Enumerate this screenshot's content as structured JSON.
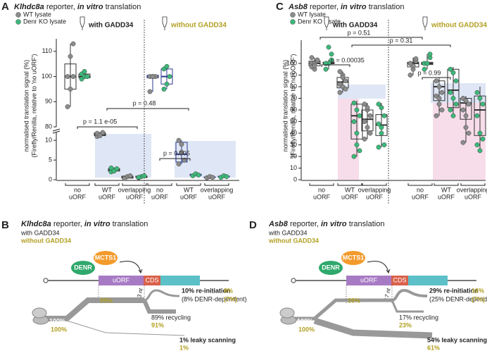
{
  "chart_data": [
    {
      "type": "box",
      "panel": "A",
      "title": [
        "Klhdc8a",
        " reporter, ",
        "in vitro",
        " translation"
      ],
      "series": [
        {
          "name": "WT lysate",
          "color": "#8c8c8c"
        },
        {
          "name": "Denr KO lysate",
          "color": "#3cb87a"
        }
      ],
      "ylabel": [
        "normalised translation signal (%)",
        "(Firefly/Renilla, relative to 'no uORF')"
      ],
      "y_segments": [
        {
          "ylim": [
            0,
            12
          ],
          "yticks": [
            0,
            5,
            10
          ]
        },
        {
          "ylim": [
            80,
            115
          ],
          "yticks": [
            80,
            90,
            100,
            110
          ]
        }
      ],
      "categories": [
        [
          "no",
          "uORF"
        ],
        [
          "WT",
          "uORF"
        ],
        [
          "overlapping",
          "uORF"
        ]
      ],
      "conditions": [
        {
          "label": "with GADD34",
          "box_color": "#333333",
          "groups": [
            {
              "boxes": [
                {
                  "points": [
                    88,
                    95,
                    100,
                    100,
                    108,
                    113
                  ],
                  "box": [
                    88,
                    95,
                    100,
                    105,
                    113
                  ]
                },
                {
                  "points": [
                    99,
                    100,
                    100,
                    101,
                    102
                  ],
                  "box": [
                    99,
                    99.5,
                    100,
                    101,
                    102
                  ]
                }
              ]
            },
            {
              "boxes": [
                {
                  "points": [
                    11,
                    11.5,
                    12,
                    11.8,
                    11.2
                  ],
                  "box": [
                    11,
                    11.2,
                    11.5,
                    11.9,
                    12
                  ]
                },
                {
                  "points": [
                    2,
                    2.5,
                    2.8,
                    3,
                    2.2
                  ],
                  "box": [
                    2,
                    2.2,
                    2.5,
                    2.8,
                    3
                  ]
                }
              ]
            },
            {
              "boxes": [
                {
                  "points": [
                    0.5,
                    0.8,
                    1,
                    0.3
                  ],
                  "box": [
                    0.3,
                    0.4,
                    0.6,
                    0.9,
                    1
                  ]
                },
                {
                  "points": [
                    0.5,
                    0.8,
                    1,
                    0.6
                  ],
                  "box": [
                    0.5,
                    0.55,
                    0.7,
                    0.9,
                    1
                  ]
                }
              ]
            }
          ]
        },
        {
          "label": "without GADD34",
          "box_color": "#2b3a8f",
          "groups": [
            {
              "boxes": [
                {
                  "points": [
                    94,
                    100,
                    100,
                    100,
                    100
                  ],
                  "box": [
                    94,
                    99.5,
                    100,
                    100.5,
                    100.5
                  ]
                },
                {
                  "points": [
                    95,
                    97,
                    100,
                    103,
                    104
                  ],
                  "box": [
                    95,
                    97,
                    100,
                    103,
                    104
                  ]
                }
              ]
            },
            {
              "boxes": [
                {
                  "points": [
                    10,
                    9,
                    5,
                    4,
                    7
                  ],
                  "box": [
                    4,
                    4.5,
                    6.5,
                    9.5,
                    10
                  ]
                },
                {
                  "points": [
                    1,
                    1.5,
                    1.2
                  ],
                  "box": [
                    1,
                    1.1,
                    1.2,
                    1.4,
                    1.5
                  ]
                }
              ]
            },
            {
              "boxes": [
                {
                  "points": [
                    0.5,
                    0.8,
                    0.6
                  ],
                  "box": [
                    0.5,
                    0.55,
                    0.6,
                    0.7,
                    0.8
                  ]
                },
                {
                  "points": [
                    0.6,
                    1,
                    0.8
                  ],
                  "box": [
                    0.6,
                    0.7,
                    0.8,
                    0.9,
                    1
                  ]
                }
              ]
            }
          ]
        }
      ],
      "annotations": [
        "p = 1.1 e-05",
        "p = 0.48",
        "p = 0.005"
      ]
    },
    {
      "type": "box",
      "panel": "C",
      "title": [
        "Asb8",
        " reporter, ",
        "in vitro",
        " translation"
      ],
      "series": [
        {
          "name": "WT lysate",
          "color": "#8c8c8c"
        },
        {
          "name": "Denr KO lysate",
          "color": "#3cb87a"
        }
      ],
      "ylabel": [
        "normalised translation signal (%)",
        "(Firefly/Renilla, relative to 'no uORF')"
      ],
      "ylim": [
        0,
        120
      ],
      "yticks": [
        0,
        10,
        20,
        30,
        40,
        50,
        60,
        70,
        80,
        90,
        100
      ],
      "categories": [
        [
          "no",
          "uORF"
        ],
        [
          "WT",
          "uORF"
        ],
        [
          "overlapping",
          "uORF"
        ]
      ],
      "conditions": [
        {
          "label": "with GADD34",
          "box_color": "#333333",
          "groups": [
            {
              "boxes": [
                {
                  "points": [
                    100,
                    100,
                    102,
                    97,
                    95,
                    103,
                    105,
                    98
                  ],
                  "box": [
                    95,
                    98,
                    100,
                    102,
                    105
                  ]
                },
                {
                  "points": [
                    100,
                    100,
                    103,
                    95,
                    114,
                    108,
                    100
                  ],
                  "box": [
                    95,
                    100,
                    100,
                    101,
                    103
                  ]
                }
              ]
            },
            {
              "boxes": [
                {
                  "points": [
                    93,
                    90,
                    85,
                    82,
                    80,
                    78,
                    75,
                    88
                  ],
                  "box": [
                    75,
                    79,
                    84,
                    88,
                    93
                  ]
                },
                {
                  "points": [
                    66,
                    60,
                    55,
                    50,
                    40,
                    25,
                    20,
                    30
                  ],
                  "box": [
                    20,
                    35,
                    55,
                    65,
                    68
                  ]
                }
              ]
            },
            {
              "boxes": [
                {
                  "points": [
                    65,
                    60,
                    55,
                    50,
                    45,
                    40,
                    35,
                    62
                  ],
                  "box": [
                    35,
                    42,
                    52,
                    60,
                    66
                  ]
                },
                {
                  "points": [
                    65,
                    62,
                    55,
                    48,
                    40,
                    30,
                    28,
                    45
                  ],
                  "box": [
                    28,
                    38,
                    47,
                    56,
                    66
                  ]
                }
              ]
            }
          ]
        },
        {
          "label": "without GADD34",
          "box_color": "#333333",
          "groups": [
            {
              "boxes": [
                {
                  "points": [
                    100,
                    95,
                    102,
                    90,
                    98,
                    104,
                    100
                  ],
                  "box": [
                    90,
                    97,
                    100,
                    101,
                    105
                  ]
                },
                {
                  "points": [
                    100,
                    100,
                    105,
                    95,
                    100,
                    108
                  ],
                  "box": [
                    95,
                    99,
                    100,
                    101,
                    108
                  ]
                }
              ]
            },
            {
              "boxes": [
                {
                  "points": [
                    85,
                    80,
                    75,
                    72,
                    70,
                    60,
                    55,
                    65
                  ],
                  "box": [
                    55,
                    68,
                    80,
                    85,
                    88
                  ]
                },
                {
                  "points": [
                    95,
                    92,
                    85,
                    75,
                    70,
                    65,
                    60,
                    55
                  ],
                  "box": [
                    55,
                    62,
                    77,
                    95,
                    97
                  ]
                }
              ]
            },
            {
              "boxes": [
                {
                  "points": [
                    70,
                    68,
                    65,
                    60,
                    55,
                    40,
                    32,
                    45
                  ],
                  "box": [
                    32,
                    52,
                    66,
                    70,
                    72
                  ]
                },
                {
                  "points": [
                    75,
                    70,
                    65,
                    55,
                    40,
                    35,
                    30,
                    25
                  ],
                  "box": [
                    25,
                    38,
                    60,
                    72,
                    80
                  ]
                }
              ]
            }
          ]
        }
      ],
      "annotations": [
        "p = 0.00035",
        "p = 0.51",
        "p = 0.31",
        "p = 0.99"
      ]
    }
  ],
  "diagrams": [
    {
      "panel": "B",
      "title": [
        "Klhdc8a",
        " reporter, ",
        "in vitro",
        " translation"
      ],
      "conditions": [
        "with GADD34",
        "without GADD34"
      ],
      "factors": [
        "DENR",
        "MCTS1"
      ],
      "elements": [
        "uORF",
        "CDS"
      ],
      "spacing": "73 nt",
      "labels": {
        "uorf_without": "99%",
        "uorf": "99% uORF",
        "reinit": "10% re-initiation",
        "reinit_denr": "(8% DENR-dependent)",
        "reinit_without": "8%",
        "reinit_denr_without": "(7%)",
        "recycling": "89% recycling",
        "recycling_without": "91%",
        "start": "100%",
        "start_without": "100%",
        "leaky": "1% leaky scanning",
        "leaky_without": "1%"
      }
    },
    {
      "panel": "D",
      "title": [
        "Asb8",
        " reporter, ",
        "in vitro",
        " translation"
      ],
      "conditions": [
        "with GADD34",
        "without GADD34"
      ],
      "factors": [
        "DENR",
        "MCTS1"
      ],
      "elements": [
        "uORF",
        "CDS"
      ],
      "spacing": "17 nt",
      "labels": {
        "uorf_without": "39%",
        "uorf": "46% uORF",
        "reinit": "29% re-initiation",
        "reinit_denr": "(25% DENR-dependent)",
        "reinit_without": "16%",
        "reinit_denr_without": "(7%)",
        "recycling": "17% recycling",
        "recycling_without": "23%",
        "start": "100%",
        "start_without": "100%",
        "leaky": "54% leaky scanning",
        "leaky_without": "61%"
      }
    }
  ]
}
